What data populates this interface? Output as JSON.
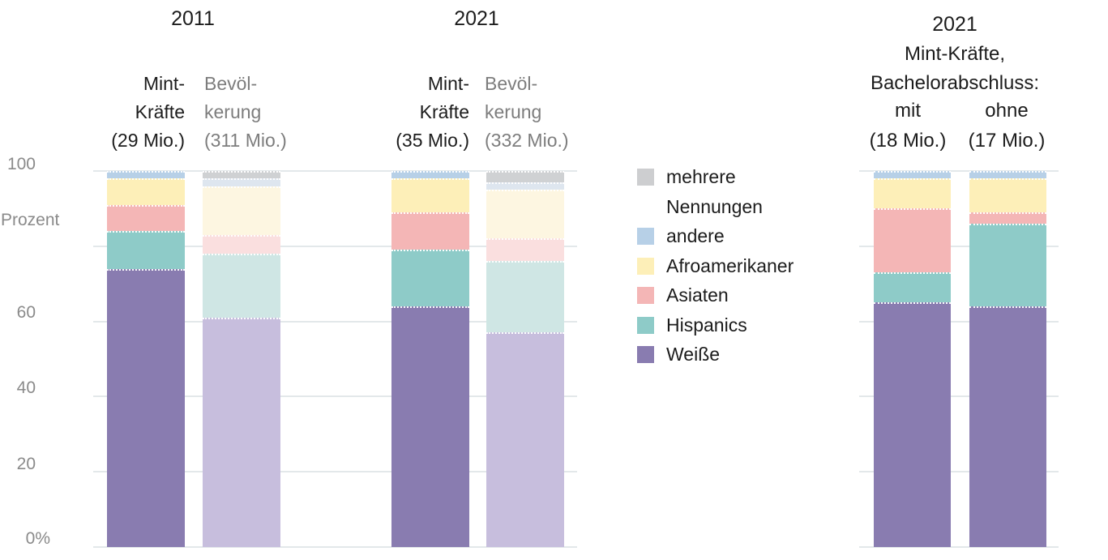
{
  "palette": {
    "strong": {
      "mehrere Nennungen": "#cdced0",
      "andere": "#b7d0e7",
      "Afroamerikaner": "#fdefb8",
      "Asiaten": "#f4b6b6",
      "Hispanics": "#8ecbc8",
      "Weiße": "#897cb0"
    },
    "tint": {
      "mehrere Nennungen": "#cfd1d3",
      "andere": "#dee6ef",
      "Afroamerikaner": "#fdf6e1",
      "Asiaten": "#fadfdf",
      "Hispanics": "#cfe6e4",
      "Weiße": "#c7bedd"
    },
    "gridline": "#e3e8ea",
    "text_black": "#1c1c1c",
    "text_gray": "#7d7d7d",
    "axis_gray": "#8a8a8a"
  },
  "axis": {
    "unit_label": "Prozent",
    "ticks": {
      "t100": "100",
      "t60": "60",
      "t40": "40",
      "t20": "20",
      "t0": "0%"
    }
  },
  "headers": {
    "g1": {
      "year": "2011",
      "mint": [
        "Mint-",
        "Kräfte",
        "(29 Mio.)"
      ],
      "bev": [
        "Bevöl-",
        "kerung",
        "(311 Mio.)"
      ]
    },
    "g2": {
      "year": "2021",
      "mint": [
        "Mint-",
        "Kräfte",
        "(35 Mio.)"
      ],
      "bev": [
        "Bevöl-",
        "kerung",
        "(332 Mio.)"
      ]
    },
    "g3": {
      "lines": [
        "2021",
        "Mint-Kräfte,",
        "Bachelorabschluss:"
      ],
      "mit": [
        "mit",
        "(18 Mio.)"
      ],
      "ohne": [
        "ohne",
        "(17 Mio.)"
      ]
    }
  },
  "legend": {
    "items": [
      {
        "key": "mehrere Nennungen",
        "lines": [
          "mehrere",
          "Nennungen"
        ]
      },
      {
        "key": "andere",
        "lines": [
          "andere"
        ]
      },
      {
        "key": "Afroamerikaner",
        "lines": [
          "Afroamerikaner"
        ]
      },
      {
        "key": "Asiaten",
        "lines": [
          "Asiaten"
        ]
      },
      {
        "key": "Hispanics",
        "lines": [
          "Hispanics"
        ]
      },
      {
        "key": "Weiße",
        "lines": [
          "Weiße"
        ]
      }
    ]
  },
  "chart_data": {
    "type": "bar",
    "stacked": true,
    "unit": "Prozent",
    "ylim": [
      0,
      100
    ],
    "yticks_labeled": [
      "0%",
      "20",
      "40",
      "60",
      "100"
    ],
    "gridlines": [
      0,
      20,
      40,
      60,
      80,
      100
    ],
    "legend_position": "middle-right of left plot",
    "stack_top_to_bottom": [
      "mehrere Nennungen",
      "andere",
      "Afroamerikaner",
      "Asiaten",
      "Hispanics",
      "Weiße"
    ],
    "groups": [
      {
        "title": "2011",
        "bars": [
          {
            "id": "mint-2011",
            "label": "Mint-Kräfte (29 Mio.)",
            "variant": "strong",
            "values": {
              "mehrere Nennungen": 0,
              "andere": 2,
              "Afroamerikaner": 7,
              "Asiaten": 7,
              "Hispanics": 10,
              "Weiße": 74
            }
          },
          {
            "id": "bevoelkerung-2011",
            "label": "Bevölkerung (311 Mio.)",
            "variant": "tint",
            "values": {
              "mehrere Nennungen": 2,
              "andere": 2,
              "Afroamerikaner": 13,
              "Asiaten": 5,
              "Hispanics": 17,
              "Weiße": 61
            }
          }
        ]
      },
      {
        "title": "2021",
        "bars": [
          {
            "id": "mint-2021",
            "label": "Mint-Kräfte (35 Mio.)",
            "variant": "strong",
            "values": {
              "mehrere Nennungen": 0,
              "andere": 2,
              "Afroamerikaner": 9,
              "Asiaten": 10,
              "Hispanics": 15,
              "Weiße": 64
            }
          },
          {
            "id": "bevoelkerung-2021",
            "label": "Bevölkerung (332 Mio.)",
            "variant": "tint",
            "values": {
              "mehrere Nennungen": 3,
              "andere": 2,
              "Afroamerikaner": 13,
              "Asiaten": 6,
              "Hispanics": 19,
              "Weiße": 57
            }
          }
        ]
      },
      {
        "title": "2021 Mint-Kräfte, Bachelorabschluss:",
        "bars": [
          {
            "id": "mit-bachelor-2021",
            "label": "mit (18 Mio.)",
            "variant": "strong",
            "values": {
              "mehrere Nennungen": 0,
              "andere": 2,
              "Afroamerikaner": 8,
              "Asiaten": 17,
              "Hispanics": 8,
              "Weiße": 65
            }
          },
          {
            "id": "ohne-bachelor-2021",
            "label": "ohne (17 Mio.)",
            "variant": "strong",
            "values": {
              "mehrere Nennungen": 0,
              "andere": 2,
              "Afroamerikaner": 9,
              "Asiaten": 3,
              "Hispanics": 22,
              "Weiße": 64
            }
          }
        ]
      }
    ]
  }
}
